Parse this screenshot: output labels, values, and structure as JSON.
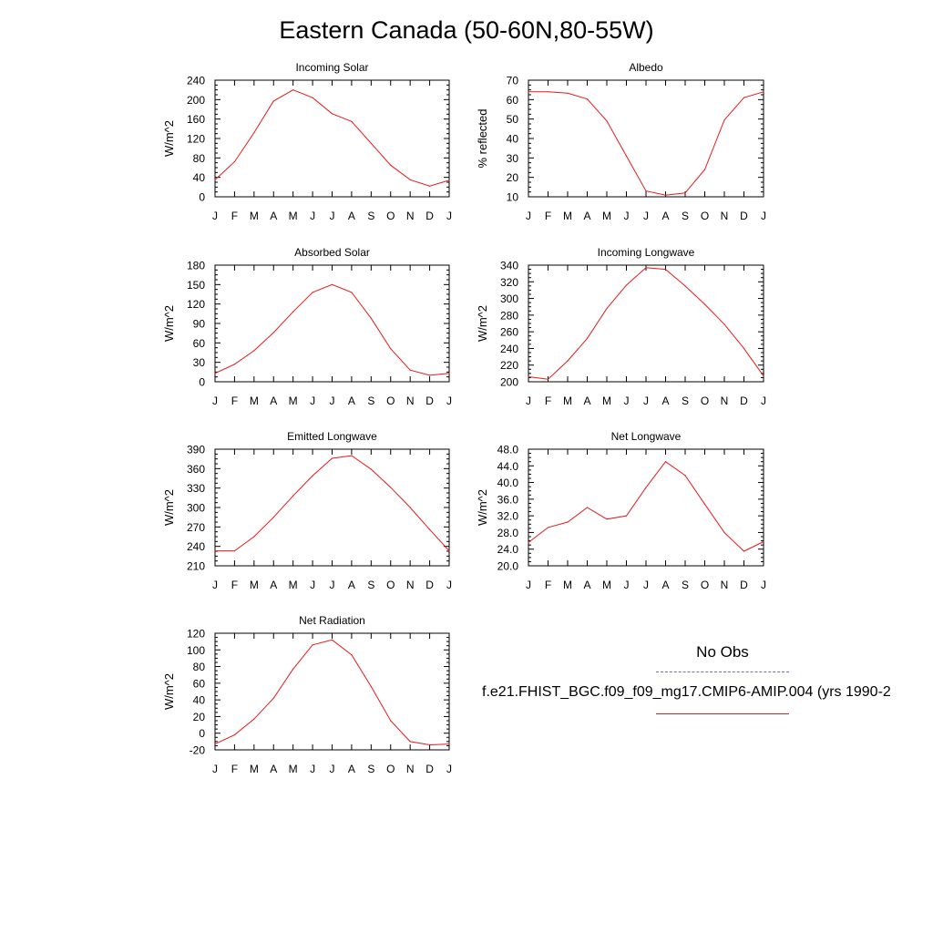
{
  "title": "Eastern Canada (50-60N,80-55W)",
  "legend": {
    "obs_label": "No Obs",
    "obs_color": "#6a6ae8",
    "model_label": "f.e21.FHIST_BGC.f09_f09_mg17.CMIP6-AMIP.004 (yrs 1990-2",
    "model_color": "#e51a1a"
  },
  "chart_data": [
    {
      "type": "line",
      "title": "Incoming Solar",
      "ylabel": "W/m^2",
      "categories": [
        "J",
        "F",
        "M",
        "A",
        "M",
        "J",
        "J",
        "A",
        "S",
        "O",
        "N",
        "D",
        "J"
      ],
      "ylim": [
        0,
        240
      ],
      "yticks": [
        "0",
        "40",
        "80",
        "120",
        "160",
        "200",
        "240"
      ],
      "series": [
        {
          "values": [
            35,
            72,
            132,
            197,
            220,
            204,
            171,
            155,
            110,
            65,
            35,
            22,
            34
          ]
        }
      ]
    },
    {
      "type": "line",
      "title": "Albedo",
      "ylabel": "% reflected",
      "categories": [
        "J",
        "F",
        "M",
        "A",
        "M",
        "J",
        "J",
        "A",
        "S",
        "O",
        "N",
        "D",
        "J"
      ],
      "ylim": [
        10,
        70
      ],
      "yticks": [
        "10",
        "20",
        "30",
        "40",
        "50",
        "60",
        "70"
      ],
      "series": [
        {
          "values": [
            64,
            64,
            63.3,
            60.3,
            49,
            31,
            13,
            10.8,
            12,
            24,
            49.5,
            61,
            64
          ]
        }
      ]
    },
    {
      "type": "line",
      "title": "Absorbed Solar",
      "ylabel": "W/m^2",
      "categories": [
        "J",
        "F",
        "M",
        "A",
        "M",
        "J",
        "J",
        "A",
        "S",
        "O",
        "N",
        "D",
        "J"
      ],
      "ylim": [
        0,
        180
      ],
      "yticks": [
        "0",
        "30",
        "60",
        "90",
        "120",
        "150",
        "180"
      ],
      "series": [
        {
          "values": [
            13,
            27,
            48,
            76,
            108,
            138,
            150,
            138,
            98,
            51,
            18,
            10,
            13
          ]
        }
      ]
    },
    {
      "type": "line",
      "title": "Incoming Longwave",
      "ylabel": "W/m^2",
      "categories": [
        "J",
        "F",
        "M",
        "A",
        "M",
        "J",
        "J",
        "A",
        "S",
        "O",
        "N",
        "D",
        "J"
      ],
      "ylim": [
        200,
        340
      ],
      "yticks": [
        "200",
        "220",
        "240",
        "260",
        "280",
        "300",
        "320",
        "340"
      ],
      "series": [
        {
          "values": [
            206,
            203,
            225,
            252,
            288,
            316,
            337,
            335,
            315,
            293,
            269,
            240,
            207
          ]
        }
      ]
    },
    {
      "type": "line",
      "title": "Emitted Longwave",
      "ylabel": "W/m^2",
      "categories": [
        "J",
        "F",
        "M",
        "A",
        "M",
        "J",
        "J",
        "A",
        "S",
        "O",
        "N",
        "D",
        "J"
      ],
      "ylim": [
        210,
        390
      ],
      "yticks": [
        "210",
        "240",
        "270",
        "300",
        "330",
        "360",
        "390"
      ],
      "series": [
        {
          "values": [
            233,
            233,
            255,
            285,
            318,
            349,
            376,
            380,
            359,
            331,
            300,
            266,
            233
          ]
        }
      ]
    },
    {
      "type": "line",
      "title": "Net Longwave",
      "ylabel": "W/m^2",
      "categories": [
        "J",
        "F",
        "M",
        "A",
        "M",
        "J",
        "J",
        "A",
        "S",
        "O",
        "N",
        "D",
        "J"
      ],
      "ylim": [
        20,
        48
      ],
      "yticks": [
        "20.0",
        "24.0",
        "28.0",
        "32.0",
        "36.0",
        "40.0",
        "44.0",
        "48.0"
      ],
      "series": [
        {
          "values": [
            25.6,
            29.2,
            30.5,
            34,
            31.2,
            32,
            38.8,
            45,
            41.7,
            34.8,
            28,
            23.5,
            25.8
          ]
        }
      ]
    },
    {
      "type": "line",
      "title": "Net Radiation",
      "ylabel": "W/m^2",
      "categories": [
        "J",
        "F",
        "M",
        "A",
        "M",
        "J",
        "J",
        "A",
        "S",
        "O",
        "N",
        "D",
        "J"
      ],
      "ylim": [
        -20,
        120
      ],
      "yticks": [
        "-20",
        "0",
        "20",
        "40",
        "60",
        "80",
        "100",
        "120"
      ],
      "series": [
        {
          "values": [
            -13,
            -2,
            17,
            42,
            77,
            106,
            112,
            94,
            56,
            15,
            -10,
            -14,
            -13
          ]
        }
      ]
    }
  ]
}
